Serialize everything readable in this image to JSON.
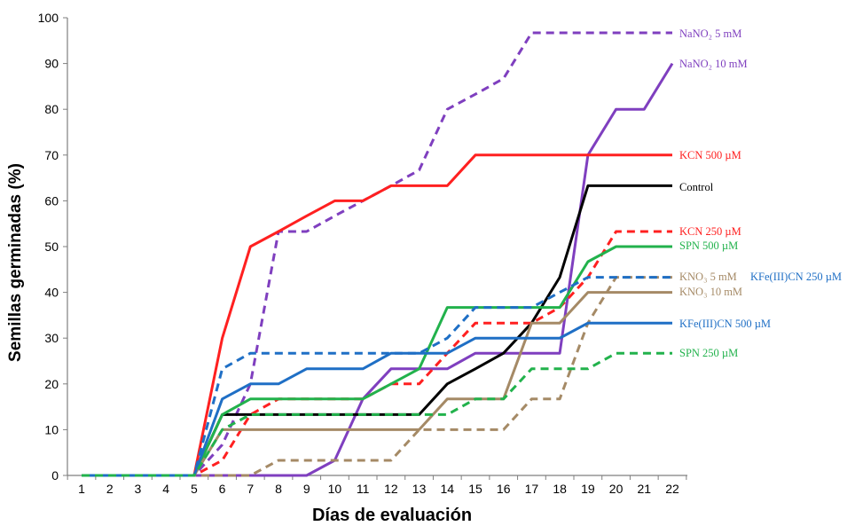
{
  "chart_data": {
    "type": "line",
    "title": "",
    "xlabel": "Días de evaluación",
    "ylabel": "Semillas germinadas (%)",
    "x": [
      1,
      2,
      3,
      4,
      5,
      6,
      7,
      8,
      9,
      10,
      11,
      12,
      13,
      14,
      15,
      16,
      17,
      18,
      19,
      20,
      21,
      22
    ],
    "xlim": [
      1,
      22
    ],
    "ylim": [
      0,
      100
    ],
    "yticks": [
      0,
      10,
      20,
      30,
      40,
      50,
      60,
      70,
      80,
      90,
      100
    ],
    "grid": false,
    "legend": "inline-right",
    "series": [
      {
        "name": "NaNO₂ 5 mM",
        "color": "#7F3FBF",
        "dash": true,
        "values": [
          0,
          0,
          0,
          0,
          0,
          6.7,
          20,
          53.3,
          53.3,
          56.7,
          60,
          63.3,
          66.7,
          80,
          83.3,
          86.7,
          96.7,
          96.7,
          96.7,
          96.7,
          96.7,
          96.7
        ]
      },
      {
        "name": "NaNO₂ 10 mM",
        "color": "#7F3FBF",
        "dash": false,
        "values": [
          0,
          0,
          0,
          0,
          0,
          0,
          0,
          0,
          0,
          3.3,
          16.7,
          23.3,
          23.3,
          23.3,
          26.7,
          26.7,
          26.7,
          26.7,
          70,
          80,
          80,
          90
        ]
      },
      {
        "name": "KCN 500 µM",
        "color": "#FF2020",
        "dash": false,
        "values": [
          0,
          0,
          0,
          0,
          0,
          30,
          50,
          53.3,
          56.7,
          60,
          60,
          63.3,
          63.3,
          63.3,
          70,
          70,
          70,
          70,
          70,
          70,
          70,
          70
        ]
      },
      {
        "name": "Control",
        "color": "#000000",
        "dash": false,
        "values": [
          0,
          0,
          0,
          0,
          0,
          13.3,
          13.3,
          13.3,
          13.3,
          13.3,
          13.3,
          13.3,
          13.3,
          20,
          23.3,
          26.7,
          33.3,
          43.3,
          63.3,
          63.3,
          63.3,
          63.3
        ]
      },
      {
        "name": "KCN 250 µM",
        "color": "#FF2020",
        "dash": true,
        "values": [
          0,
          0,
          0,
          0,
          0,
          3.3,
          13.3,
          16.7,
          16.7,
          16.7,
          16.7,
          20,
          20,
          26.7,
          33.3,
          33.3,
          33.3,
          36.7,
          43.3,
          53.3,
          53.3,
          53.3
        ]
      },
      {
        "name": "SPN 500 µM",
        "color": "#22B24C",
        "dash": false,
        "values": [
          0,
          0,
          0,
          0,
          0,
          13.3,
          16.7,
          16.7,
          16.7,
          16.7,
          16.7,
          20,
          23.3,
          36.7,
          36.7,
          36.7,
          36.7,
          36.7,
          46.7,
          50,
          50,
          50
        ]
      },
      {
        "name": "KNO₃ 5 mM",
        "color": "#A58A66",
        "dash": true,
        "values": [
          0,
          0,
          0,
          0,
          0,
          0,
          0,
          3.3,
          3.3,
          3.3,
          3.3,
          3.3,
          10,
          10,
          10,
          10,
          16.7,
          16.7,
          33.3,
          43.3,
          43.3,
          43.3
        ]
      },
      {
        "name": "KFe(III)CN 250 µM",
        "color": "#1F6FC5",
        "dash": true,
        "values": [
          0,
          0,
          0,
          0,
          0,
          23.3,
          26.7,
          26.7,
          26.7,
          26.7,
          26.7,
          26.7,
          26.7,
          30,
          36.7,
          36.7,
          36.7,
          40,
          43.3,
          43.3,
          43.3,
          43.3
        ]
      },
      {
        "name": "KNO₃ 10 mM",
        "color": "#A58A66",
        "dash": false,
        "values": [
          0,
          0,
          0,
          0,
          0,
          10,
          10,
          10,
          10,
          10,
          10,
          10,
          10,
          16.7,
          16.7,
          16.7,
          33.3,
          33.3,
          40,
          40,
          40,
          40
        ]
      },
      {
        "name": "KFe(III)CN 500 µM",
        "color": "#1F6FC5",
        "dash": false,
        "values": [
          0,
          0,
          0,
          0,
          0,
          16.7,
          20,
          20,
          23.3,
          23.3,
          23.3,
          26.7,
          26.7,
          26.7,
          30,
          30,
          30,
          30,
          33.3,
          33.3,
          33.3,
          33.3
        ]
      },
      {
        "name": "SPN 250 µM",
        "color": "#22B24C",
        "dash": true,
        "values": [
          0,
          0,
          0,
          0,
          0,
          10,
          13.3,
          13.3,
          13.3,
          13.3,
          13.3,
          13.3,
          13.3,
          13.3,
          16.7,
          16.7,
          23.3,
          23.3,
          23.3,
          26.7,
          26.7,
          26.7
        ]
      }
    ]
  }
}
